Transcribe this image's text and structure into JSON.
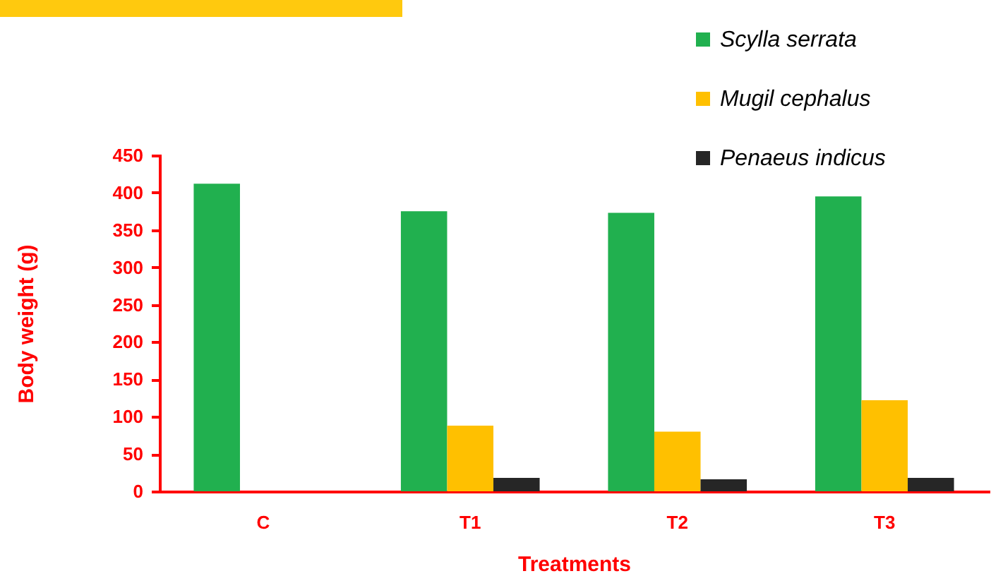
{
  "chart_data": {
    "type": "bar",
    "xlabel": "Treatments",
    "ylabel": "Body weight (g)",
    "categories": [
      "C",
      "T1",
      "T2",
      "T3"
    ],
    "series": [
      {
        "name": "Scylla serrata",
        "color": "#21b04f",
        "values": [
          412,
          375,
          373,
          395
        ]
      },
      {
        "name": "Mugil cephalus",
        "color": "#ffc000",
        "values": [
          null,
          88,
          80,
          122
        ]
      },
      {
        "name": "Penaeus indicus",
        "color": "#262626",
        "values": [
          null,
          18,
          16,
          18
        ]
      }
    ],
    "ylim": [
      0,
      450
    ],
    "yticks": [
      0,
      50,
      100,
      150,
      200,
      250,
      300,
      350,
      400,
      450
    ],
    "legend": "top right"
  }
}
